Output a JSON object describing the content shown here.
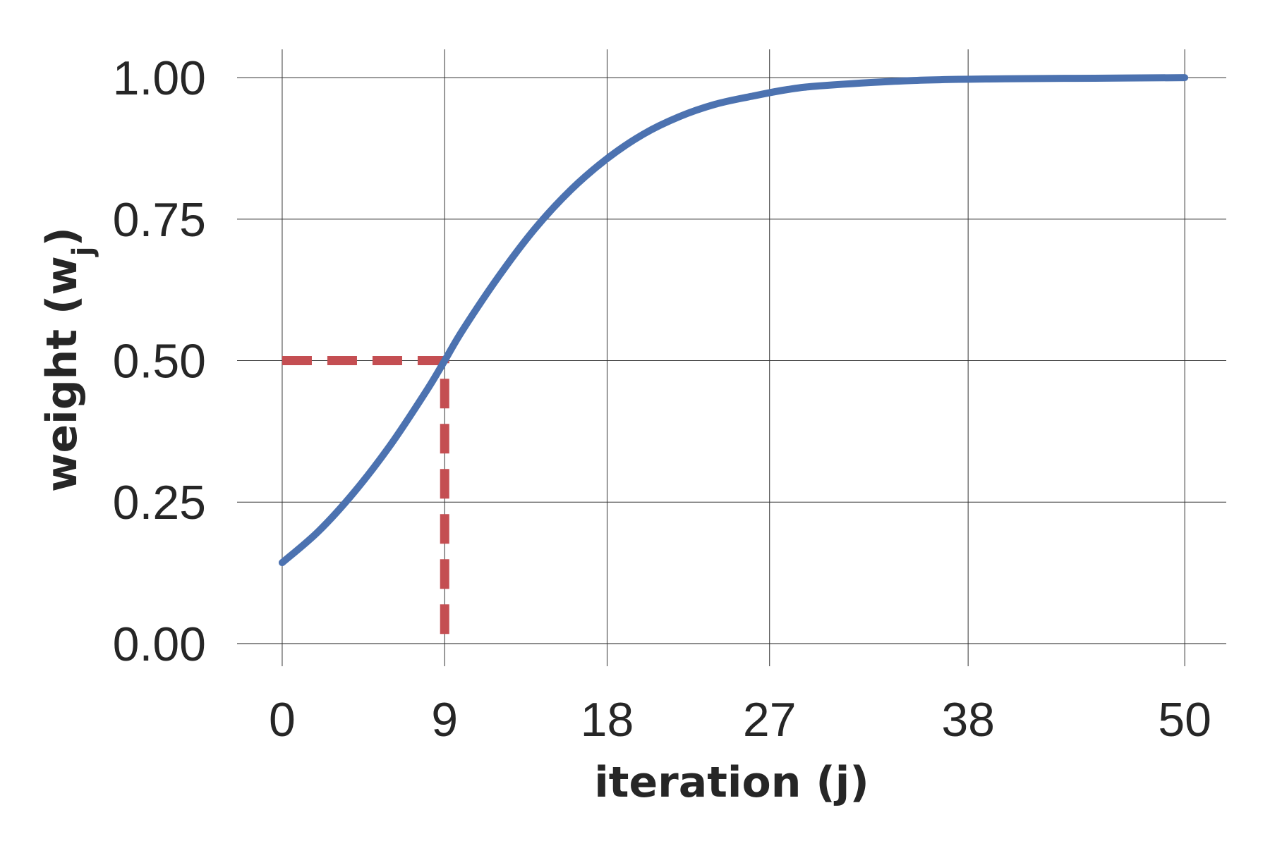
{
  "chart_data": {
    "type": "line",
    "xlabel": "iteration (j)",
    "ylabel": {
      "text": "weight (w",
      "subscript": "j",
      "suffix": ")"
    },
    "x_ticks": [
      0,
      9,
      18,
      27,
      38,
      50
    ],
    "y_ticks": [
      "0.00",
      "0.25",
      "0.50",
      "0.75",
      "1.00"
    ],
    "xlim": [
      -2.5,
      52.3
    ],
    "ylim": [
      -0.04,
      1.05
    ],
    "grid": true,
    "series": [
      {
        "style": "solid",
        "color": "#4C72B0",
        "x": [
          0,
          2,
          4,
          6,
          8,
          9,
          10,
          12,
          14,
          16,
          18,
          20,
          22,
          24,
          26,
          28,
          30,
          35,
          40,
          45,
          50
        ],
        "y": [
          0.143,
          0.198,
          0.268,
          0.351,
          0.447,
          0.5,
          0.554,
          0.649,
          0.733,
          0.802,
          0.857,
          0.9,
          0.931,
          0.953,
          0.967,
          0.979,
          0.986,
          0.995,
          0.998,
          0.999,
          1.0
        ]
      }
    ],
    "reference_lines": [
      {
        "style": "dashed",
        "color": "#C44E52",
        "x": [
          0,
          9,
          9
        ],
        "y": [
          0.5,
          0.5,
          0.0
        ]
      }
    ]
  }
}
